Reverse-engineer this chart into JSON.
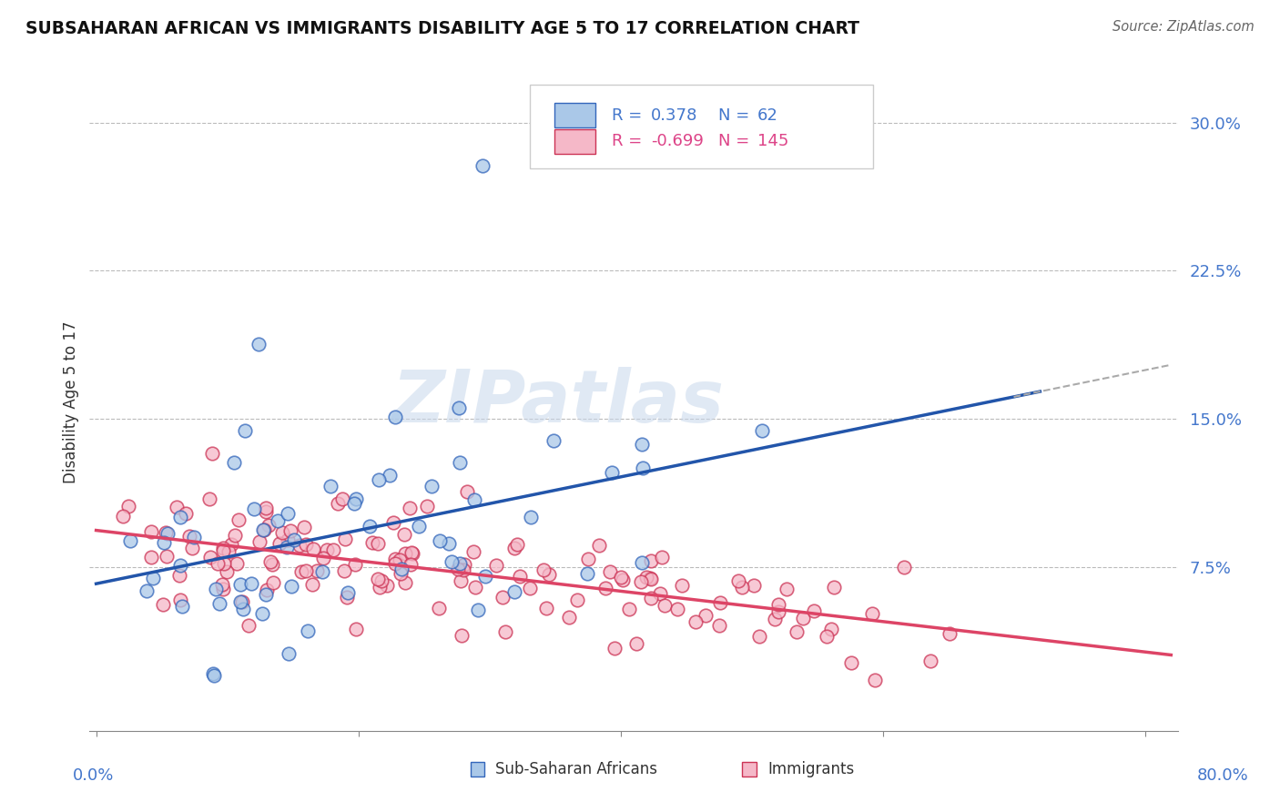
{
  "title": "SUBSAHARAN AFRICAN VS IMMIGRANTS DISABILITY AGE 5 TO 17 CORRELATION CHART",
  "source": "Source: ZipAtlas.com",
  "ylabel": "Disability Age 5 to 17",
  "xlim": [
    0.0,
    0.8
  ],
  "ylim": [
    0.0,
    0.32
  ],
  "ytick_vals": [
    0.075,
    0.15,
    0.225,
    0.3
  ],
  "ytick_labels": [
    "7.5%",
    "15.0%",
    "22.5%",
    "30.0%"
  ],
  "blue_color": "#aac8e8",
  "pink_color": "#f5b8c8",
  "blue_line_color": "#2255aa",
  "pink_line_color": "#dd4466",
  "blue_edge_color": "#3366bb",
  "pink_edge_color": "#cc3355",
  "axis_color": "#4477cc",
  "watermark": "ZIPatlas",
  "legend_blue_r": "0.378",
  "legend_blue_n": "62",
  "legend_pink_r": "-0.699",
  "legend_pink_n": "145",
  "seed_blue": 42,
  "seed_pink": 99,
  "n_blue": 62,
  "n_pink": 145,
  "blue_r": 0.378,
  "pink_r": -0.699,
  "blue_ymean": 0.088,
  "blue_ystd": 0.03,
  "pink_ymean": 0.072,
  "pink_ystd": 0.02,
  "blue_xshape1": 1.8,
  "blue_xshape2": 5.0,
  "pink_xshape1": 1.5,
  "pink_xshape2": 3.0
}
